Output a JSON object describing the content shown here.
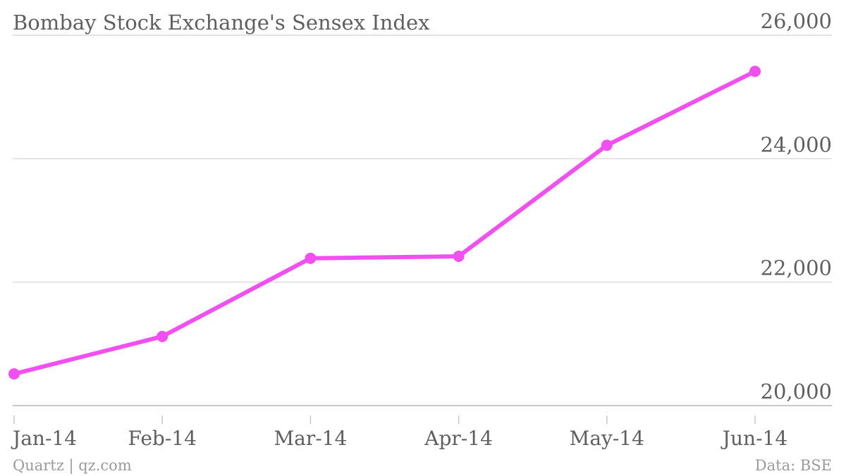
{
  "chart_data": {
    "type": "line",
    "title": "Bombay Stock Exchange's Sensex Index",
    "categories": [
      "Jan-14",
      "Feb-14",
      "Mar-14",
      "Apr-14",
      "May-14",
      "Jun-14"
    ],
    "x": [
      0,
      1,
      2,
      3,
      4,
      5
    ],
    "series": [
      {
        "values": [
          20513,
          21120,
          22386,
          22418,
          24217,
          25414
        ],
        "color": "#f050f0"
      }
    ],
    "yticks": [
      "20,000",
      "22,000",
      "24,000",
      "26,000"
    ],
    "ytick_values": [
      20000,
      22000,
      24000,
      26000
    ],
    "ylim": [
      20000,
      26000
    ],
    "xlabel": "",
    "ylabel": "",
    "y_axis_position": "right",
    "grid": true,
    "legend": "none"
  },
  "footer": {
    "source_left": "Quartz | qz.com",
    "source_right": "Data: BSE"
  }
}
